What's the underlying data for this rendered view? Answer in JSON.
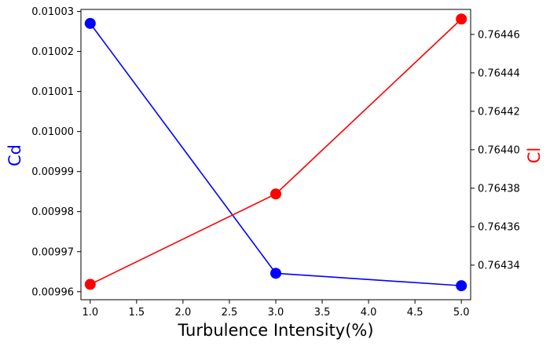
{
  "chart_data": {
    "type": "line",
    "title": "",
    "xlabel": "Turbulence Intensity(%)",
    "ylabel_left": "Cd",
    "ylabel_right": "Cl",
    "x": [
      1.0,
      3.0,
      5.0
    ],
    "xlim": [
      0.9,
      5.1
    ],
    "xticks": [
      "1.0",
      "1.5",
      "2.0",
      "2.5",
      "3.0",
      "3.5",
      "4.0",
      "4.5",
      "5.0"
    ],
    "ylim_left": [
      0.009958,
      0.0100305
    ],
    "ylim_right": [
      0.764322,
      0.764473
    ],
    "yticks_left": [
      "0.00996",
      "0.00997",
      "0.00998",
      "0.00999",
      "0.01000",
      "0.01001",
      "0.01002",
      "0.01003"
    ],
    "yticks_right": [
      "0.76434",
      "0.76436",
      "0.76438",
      "0.76440",
      "0.76442",
      "0.76444",
      "0.76446"
    ],
    "grid": false,
    "series": [
      {
        "axis": "left",
        "color": "#0000ff",
        "values": [
          0.010027,
          0.0099646,
          0.0099615
        ]
      },
      {
        "axis": "right",
        "color": "#ff0000",
        "values": [
          0.76433,
          0.764377,
          0.764468
        ]
      }
    ]
  }
}
